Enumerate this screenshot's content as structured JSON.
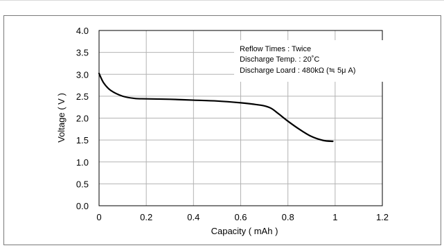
{
  "chart_data": {
    "type": "line",
    "xlabel": "Capacity ( mAh )",
    "ylabel": "Voltage ( V )",
    "xlim": [
      0,
      1.2
    ],
    "ylim": [
      0.0,
      4.0
    ],
    "xticks": [
      "0",
      "0.2",
      "0.4",
      "0.6",
      "0.8",
      "1",
      "1.2"
    ],
    "yticks": [
      "0.0",
      "0.5",
      "1.0",
      "1.5",
      "2.0",
      "2.5",
      "3.0",
      "3.5",
      "4.0"
    ],
    "grid": true,
    "annotations": [
      "Reflow Times : Twice",
      "Discharge Temp. : 20˚C",
      "Discharge Loard : 480kΩ (≒ 5μ A)"
    ],
    "series": [
      {
        "x": [
          0.0,
          0.02,
          0.05,
          0.1,
          0.15,
          0.2,
          0.3,
          0.4,
          0.5,
          0.6,
          0.65,
          0.7,
          0.73,
          0.76,
          0.8,
          0.85,
          0.9,
          0.95,
          0.99
        ],
        "y": [
          3.02,
          2.8,
          2.63,
          2.5,
          2.45,
          2.44,
          2.43,
          2.41,
          2.39,
          2.35,
          2.32,
          2.28,
          2.22,
          2.1,
          1.93,
          1.74,
          1.58,
          1.49,
          1.47
        ],
        "color": "#000000"
      }
    ]
  }
}
